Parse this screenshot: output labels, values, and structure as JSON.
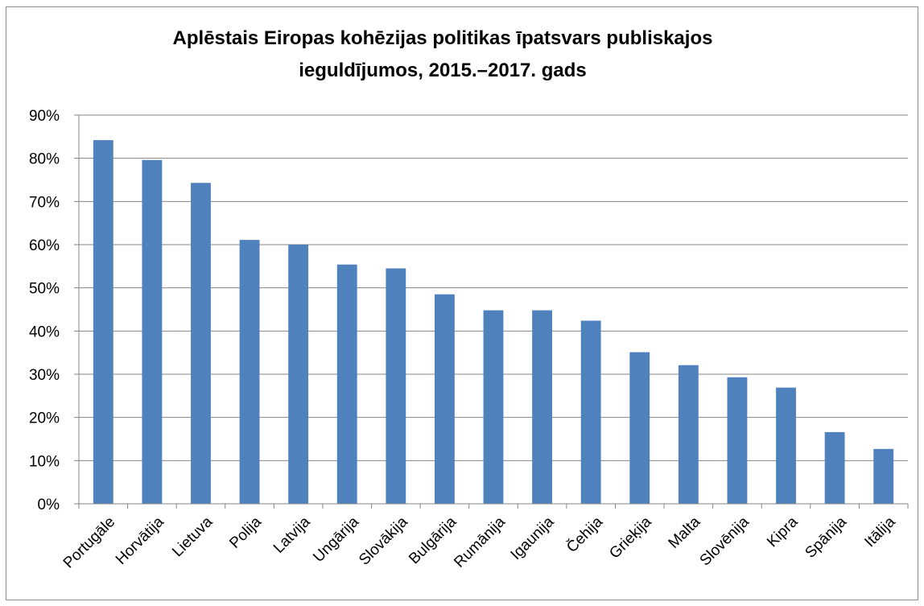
{
  "chart_data": {
    "type": "bar",
    "title_lines": [
      "Aplēstais Eiropas kohēzijas politikas īpatsvars publiskajos",
      "ieguldījumos, 2015.–2017. gads"
    ],
    "categories": [
      "Portugāle",
      "Horvātija",
      "Lietuva",
      "Polija",
      "Latvija",
      "Ungārija",
      "Slovākija",
      "Bulgārija",
      "Rumānija",
      "Igaunija",
      "Čehija",
      "Grieķija",
      "Malta",
      "Slovēnija",
      "Kipra",
      "Spānija",
      "Itālija"
    ],
    "values": [
      84.2,
      79.6,
      74.3,
      61.1,
      60.0,
      55.4,
      54.5,
      48.5,
      44.8,
      44.8,
      42.4,
      35.1,
      32.1,
      29.3,
      26.9,
      16.6,
      12.7
    ],
    "ylim": [
      0,
      90
    ],
    "y_ticks": [
      {
        "value": 0,
        "label": "0%"
      },
      {
        "value": 10,
        "label": "10%"
      },
      {
        "value": 20,
        "label": "20%"
      },
      {
        "value": 30,
        "label": "30%"
      },
      {
        "value": 40,
        "label": "40%"
      },
      {
        "value": 50,
        "label": "50%"
      },
      {
        "value": 60,
        "label": "60%"
      },
      {
        "value": 70,
        "label": "70%"
      },
      {
        "value": 80,
        "label": "80%"
      },
      {
        "value": 90,
        "label": "90%"
      }
    ],
    "grid": true,
    "legend": "none",
    "bar_color": "#4f81bd",
    "grid_color": "#868686",
    "axis_color": "#868686"
  }
}
